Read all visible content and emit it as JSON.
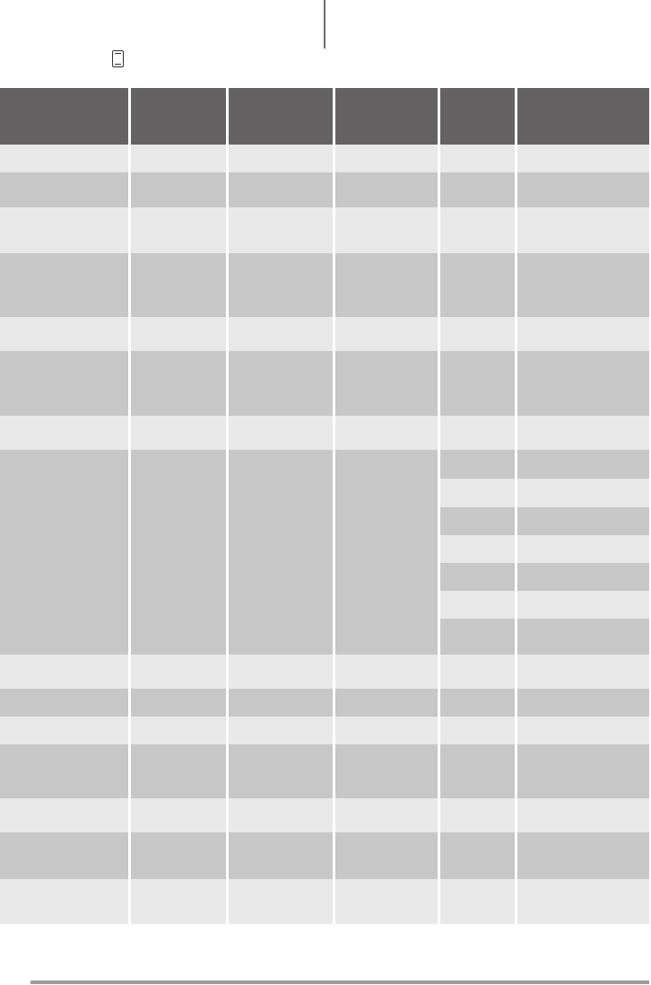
{
  "colors": {
    "header": "#646262",
    "row_light": "#e8e8e8",
    "row_dark": "#c7c7c7",
    "rule": "#9a9a9a"
  },
  "icons": {
    "top": "oven-icon"
  },
  "table": {
    "headers": [
      "",
      "",
      "",
      "",
      "",
      ""
    ],
    "row_shading": [
      "light",
      "dark",
      "light",
      "dark",
      "light",
      "dark",
      "light",
      "dark-merged",
      "light",
      "dark",
      "light",
      "dark",
      "light",
      "dark",
      "light"
    ],
    "merged_subrow_shading": [
      "dark",
      "light",
      "dark",
      "light",
      "dark",
      "light",
      "dark"
    ]
  }
}
